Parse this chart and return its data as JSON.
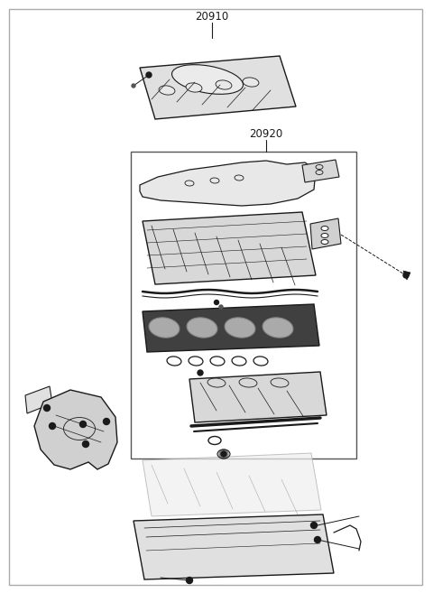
{
  "bg_color": "#ffffff",
  "line_color": "#1a1a1a",
  "part_20910": "20910",
  "part_20920": "20920",
  "fig_width": 4.8,
  "fig_height": 6.57,
  "dpi": 100
}
